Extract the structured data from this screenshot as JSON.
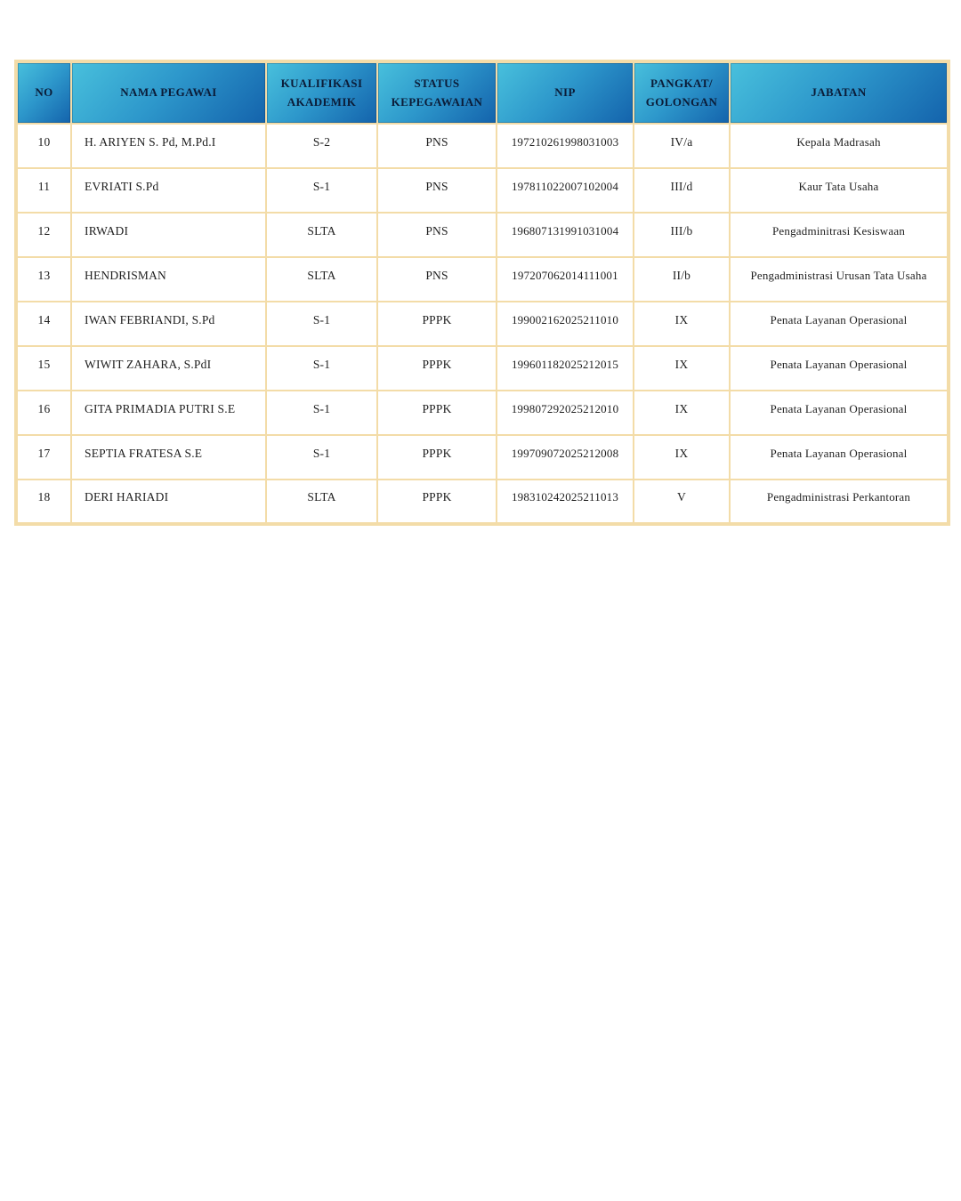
{
  "colors": {
    "page_background": "#ffffff",
    "table_border": "#f3dca8",
    "header_gradient_start": "#48c0dc",
    "header_gradient_end": "#1463ac",
    "header_text": "#0b1c38",
    "body_text": "#1e1e1e"
  },
  "table": {
    "columns": [
      {
        "key": "no",
        "label": "NO"
      },
      {
        "key": "nama",
        "label": "NAMA PEGAWAI"
      },
      {
        "key": "kualifikasi",
        "label": "KUALIFIKASI\nAKADEMIK"
      },
      {
        "key": "status",
        "label": "STATUS\nKEPEGAWAIAN"
      },
      {
        "key": "nip",
        "label": "NIP"
      },
      {
        "key": "pangkat",
        "label": "PANGKAT/\nGOLONGAN"
      },
      {
        "key": "jabatan",
        "label": "JABATAN"
      }
    ],
    "rows": [
      {
        "no": "10",
        "nama": "H. ARIYEN S. Pd, M.Pd.I",
        "kualifikasi": "S-2",
        "status": "PNS",
        "nip": "197210261998031003",
        "pangkat": "IV/a",
        "jabatan": "Kepala Madrasah"
      },
      {
        "no": "11",
        "nama": "EVRIATI S.Pd",
        "kualifikasi": "S-1",
        "status": "PNS",
        "nip": "197811022007102004",
        "pangkat": "III/d",
        "jabatan": "Kaur Tata Usaha"
      },
      {
        "no": "12",
        "nama": "IRWADI",
        "kualifikasi": "SLTA",
        "status": "PNS",
        "nip": "196807131991031004",
        "pangkat": "III/b",
        "jabatan": "Pengadminitrasi Kesiswaan"
      },
      {
        "no": "13",
        "nama": "HENDRISMAN",
        "kualifikasi": "SLTA",
        "status": "PNS",
        "nip": "197207062014111001",
        "pangkat": "II/b",
        "jabatan": "Pengadministrasi Urusan Tata Usaha"
      },
      {
        "no": "14",
        "nama": "IWAN FEBRIANDI, S.Pd",
        "kualifikasi": "S-1",
        "status": "PPPK",
        "nip": "199002162025211010",
        "pangkat": "IX",
        "jabatan": "Penata Layanan Operasional"
      },
      {
        "no": "15",
        "nama": "WIWIT ZAHARA, S.PdI",
        "kualifikasi": "S-1",
        "status": "PPPK",
        "nip": "199601182025212015",
        "pangkat": "IX",
        "jabatan": "Penata Layanan Operasional"
      },
      {
        "no": "16",
        "nama": "GITA PRIMADIA PUTRI S.E",
        "kualifikasi": "S-1",
        "status": "PPPK",
        "nip": "199807292025212010",
        "pangkat": "IX",
        "jabatan": "Penata Layanan Operasional"
      },
      {
        "no": "17",
        "nama": "SEPTIA FRATESA S.E",
        "kualifikasi": "S-1",
        "status": "PPPK",
        "nip": "199709072025212008",
        "pangkat": "IX",
        "jabatan": "Penata Layanan Operasional"
      },
      {
        "no": "18",
        "nama": "DERI HARIADI",
        "kualifikasi": "SLTA",
        "status": "PPPK",
        "nip": "198310242025211013",
        "pangkat": "V",
        "jabatan": "Pengadministrasi Perkantoran"
      }
    ]
  }
}
